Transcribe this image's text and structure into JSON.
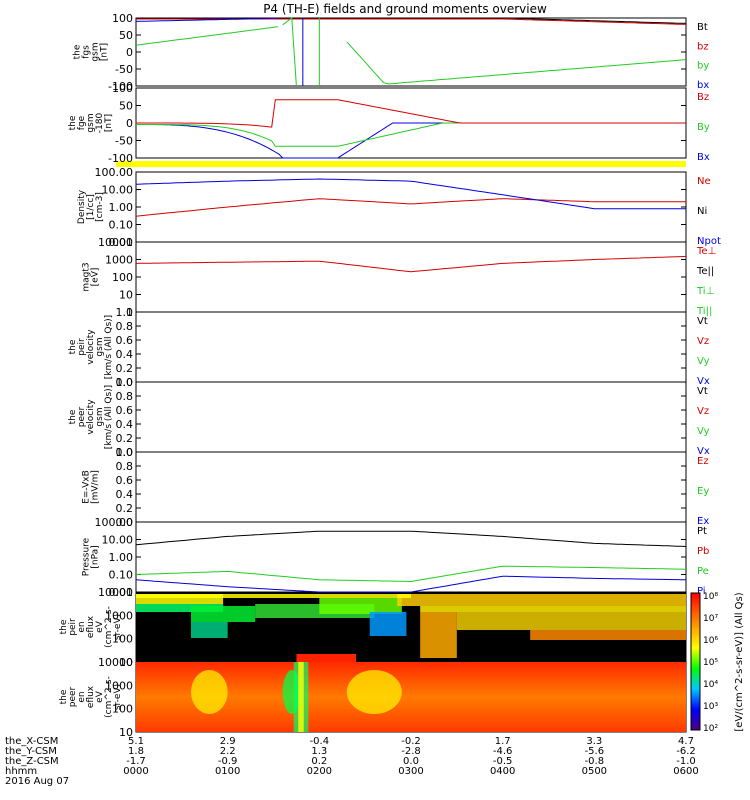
{
  "title": "P4 (TH-E) fields and ground moments overview",
  "colors": {
    "black": "#000000",
    "red": "#d40000",
    "green": "#22cc22",
    "blue": "#0000dd",
    "yellow": "#ffff00"
  },
  "panels": [
    {
      "ylabel": [
        "the",
        "fgs",
        "gsm",
        "[nT]"
      ],
      "ticks": [
        "100",
        "50",
        "0",
        "-50",
        "-100"
      ],
      "legend": [
        {
          "label": "Bt",
          "color": "#000000"
        },
        {
          "label": "bz",
          "color": "#d40000"
        },
        {
          "label": "by",
          "color": "#22cc22"
        },
        {
          "label": "bx",
          "color": "#0000dd"
        }
      ]
    },
    {
      "ylabel": [
        "the",
        "fge",
        "gsm",
        "-180",
        "[nT]"
      ],
      "ticks": [
        "100",
        "50",
        "0",
        "-50",
        "-100"
      ],
      "legend": [
        {
          "label": "Bz",
          "color": "#d40000"
        },
        {
          "label": "By",
          "color": "#22cc22"
        },
        {
          "label": "Bx",
          "color": "#0000dd"
        }
      ]
    },
    {
      "ylabel": [
        "Density",
        "[1/cc]",
        "[cm-3]"
      ],
      "ticks": [
        "100.00",
        "10.00",
        "1.00",
        "0.10",
        "0.01"
      ],
      "legend": [
        {
          "label": "Ne",
          "color": "#d40000"
        },
        {
          "label": "Ni",
          "color": "#000000"
        },
        {
          "label": "Npot",
          "color": "#0000dd"
        }
      ]
    },
    {
      "ylabel": [
        "magt3",
        "[eV]"
      ],
      "ticks": [
        "10000",
        "1000",
        "100",
        "10",
        "1"
      ],
      "legend": [
        {
          "label": "Te⊥",
          "color": "#d40000"
        },
        {
          "label": "Te||",
          "color": "#000000"
        },
        {
          "label": "Ti⊥",
          "color": "#22cc22"
        },
        {
          "label": "Ti||",
          "color": "#22cc22"
        }
      ]
    },
    {
      "ylabel": [
        "the",
        "peir",
        "velocity",
        "gsm",
        "[km/s (All Qs)]"
      ],
      "ticks": [
        "1.0",
        "0.8",
        "0.6",
        "0.4",
        "0.2",
        "0.0"
      ],
      "legend": [
        {
          "label": "Vt",
          "color": "#000000"
        },
        {
          "label": "Vz",
          "color": "#d40000"
        },
        {
          "label": "Vy",
          "color": "#22cc22"
        },
        {
          "label": "Vx",
          "color": "#0000dd"
        }
      ]
    },
    {
      "ylabel": [
        "the",
        "peer",
        "velocity",
        "gsm",
        "[km/s (All Qs)]"
      ],
      "ticks": [
        "1.0",
        "0.8",
        "0.6",
        "0.4",
        "0.2",
        "0.0"
      ],
      "legend": [
        {
          "label": "Vt",
          "color": "#000000"
        },
        {
          "label": "Vz",
          "color": "#d40000"
        },
        {
          "label": "Vy",
          "color": "#22cc22"
        },
        {
          "label": "Vx",
          "color": "#0000dd"
        }
      ]
    },
    {
      "ylabel": [
        "E=-VxB",
        "[mV/m]"
      ],
      "ticks": [
        "1.0",
        "0.8",
        "0.6",
        "0.4",
        "0.2",
        "0.0"
      ],
      "legend": [
        {
          "label": "Ez",
          "color": "#d40000"
        },
        {
          "label": "Ey",
          "color": "#22cc22"
        },
        {
          "label": "Ex",
          "color": "#0000dd"
        }
      ]
    },
    {
      "ylabel": [
        "Pressure",
        "[nPa]"
      ],
      "ticks": [
        "100.00",
        "10.00",
        "1.00",
        "0.10",
        "0.01"
      ],
      "legend": [
        {
          "label": "Pt",
          "color": "#000000"
        },
        {
          "label": "Pb",
          "color": "#d40000"
        },
        {
          "label": "Pe",
          "color": "#22cc22"
        },
        {
          "label": "Pi",
          "color": "#0000dd"
        }
      ]
    },
    {
      "ylabel": [
        "the",
        "peir",
        "en",
        "eflux",
        "eV",
        "(cm^2-s-",
        "sr-eV)"
      ],
      "ticks": [
        "10000",
        "1000",
        "100",
        "10"
      ]
    },
    {
      "ylabel": [
        "the",
        "peer",
        "en",
        "eflux",
        "eV",
        "(cm^2-s-",
        "sr-eV)"
      ],
      "ticks": [
        "10000",
        "1000",
        "100",
        "10"
      ]
    }
  ],
  "colorbar": {
    "label": "[eV/(cm^2-s-sr-eV)] (All Qs)",
    "ticks": [
      "10⁸",
      "10⁷",
      "10⁶",
      "10⁵",
      "10⁴",
      "10³",
      "10²"
    ]
  },
  "xaxis": {
    "rows": [
      {
        "label": "the_X-CSM",
        "values": [
          "5.1",
          "2.9",
          "-0.4",
          "-0.2",
          "1.7",
          "3.3",
          "4.7"
        ]
      },
      {
        "label": "the_Y-CSM",
        "values": [
          "1.8",
          "2.2",
          "1.3",
          "-2.8",
          "-4.6",
          "-5.6",
          "-6.2"
        ]
      },
      {
        "label": "the_Z-CSM",
        "values": [
          "-1.7",
          "-0.9",
          "0.2",
          "0.0",
          "-0.5",
          "-0.8",
          "-1.0"
        ]
      },
      {
        "label": "hhmm",
        "values": [
          "0000",
          "0100",
          "0200",
          "0300",
          "0400",
          "0500",
          "0600"
        ]
      }
    ],
    "date": "2016 Aug 07"
  },
  "chart_data": {
    "type": "line",
    "title": "P4 (TH-E) fields and ground moments overview",
    "x_unit": "hhmm",
    "x": [
      "0000",
      "0100",
      "0200",
      "0300",
      "0400",
      "0500",
      "0600"
    ],
    "series": [
      {
        "name": "Bt",
        "panel": 0,
        "values": [
          100,
          100,
          100,
          100,
          100,
          95,
          85
        ]
      },
      {
        "name": "by",
        "panel": 0,
        "values": [
          30,
          60,
          300,
          -90,
          -80,
          -50,
          -20
        ]
      },
      {
        "name": "Bx",
        "panel": 1,
        "values": [
          0,
          -40,
          -120,
          0,
          0,
          0,
          0
        ]
      },
      {
        "name": "Ne",
        "panel": 2,
        "values": [
          0.3,
          1.0,
          3.0,
          1.5,
          3.0,
          2.0,
          2.0
        ]
      },
      {
        "name": "Npot",
        "panel": 2,
        "values": [
          20,
          30,
          40,
          30,
          5,
          0.8,
          0.8
        ]
      },
      {
        "name": "Te⊥",
        "panel": 3,
        "values": [
          600,
          700,
          800,
          200,
          600,
          1000,
          1500
        ]
      },
      {
        "name": "Pt",
        "panel": 7,
        "values": [
          5,
          15,
          30,
          30,
          15,
          6,
          4
        ]
      },
      {
        "name": "Pe",
        "panel": 7,
        "values": [
          0.1,
          0.15,
          0.05,
          0.04,
          0.3,
          0.25,
          0.2
        ]
      },
      {
        "name": "Pi",
        "panel": 7,
        "values": [
          0.05,
          0.02,
          0.01,
          0.01,
          0.08,
          0.06,
          0.05
        ]
      }
    ]
  }
}
